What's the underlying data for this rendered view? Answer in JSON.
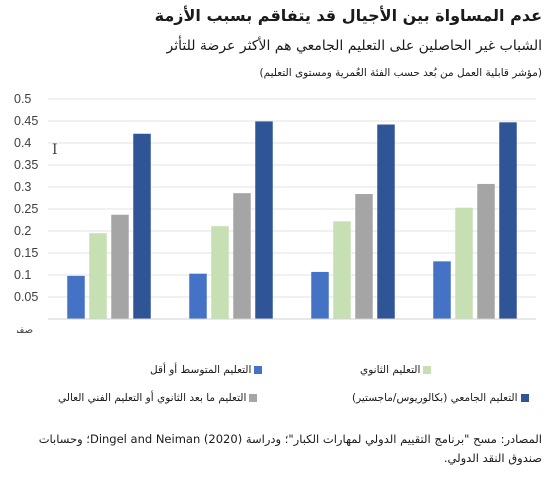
{
  "header": {
    "title": "عدم المساواة بين الأجيال قد يتفاقم بسبب الأزمة",
    "subtitle": "الشباب غير الحاصلين على التعليم الجامعي هم الأكثر عرضة للتأثر",
    "note": "(مؤشر قابلية العمل من بُعد حسب الفئة العُمرية ومستوى التعليم)"
  },
  "chart_data": {
    "type": "bar",
    "categories": [
      "",
      "",
      "",
      ""
    ],
    "y_tick_labels": [
      "صفر",
      "0.05",
      "0.1",
      "0.15",
      "0.2",
      "0.25",
      "0.3",
      "0.35",
      "0.4",
      "0.45",
      "0.5"
    ],
    "ylim": [
      0,
      0.5
    ],
    "grid": true,
    "legend_position": "bottom",
    "series": [
      {
        "name": "التعليم المتوسط أو أقل",
        "color": "#4472C4",
        "values": [
          0.098,
          0.103,
          0.107,
          0.131
        ]
      },
      {
        "name": "التعليم الثانوي",
        "color": "#C6E0B4",
        "values": [
          0.195,
          0.211,
          0.222,
          0.253
        ]
      },
      {
        "name": "التعليم ما بعد الثانوي أو التعليم الفني العالي",
        "color": "#A5A5A5",
        "values": [
          0.237,
          0.286,
          0.284,
          0.307
        ]
      },
      {
        "name": "التعليم الجامعي (بكالوريوس/ماجستير)",
        "color": "#2F5597",
        "values": [
          0.421,
          0.449,
          0.442,
          0.447
        ]
      }
    ]
  },
  "source": "المصادر: مسح \"برنامج التقييم الدولي لمهارات الكبار\"؛ ودراسة (2020) Dingel and Neiman؛ وحسابات صندوق النقد الدولي.",
  "cursor": {
    "icon": "text-cursor-icon",
    "glyph": "I"
  }
}
